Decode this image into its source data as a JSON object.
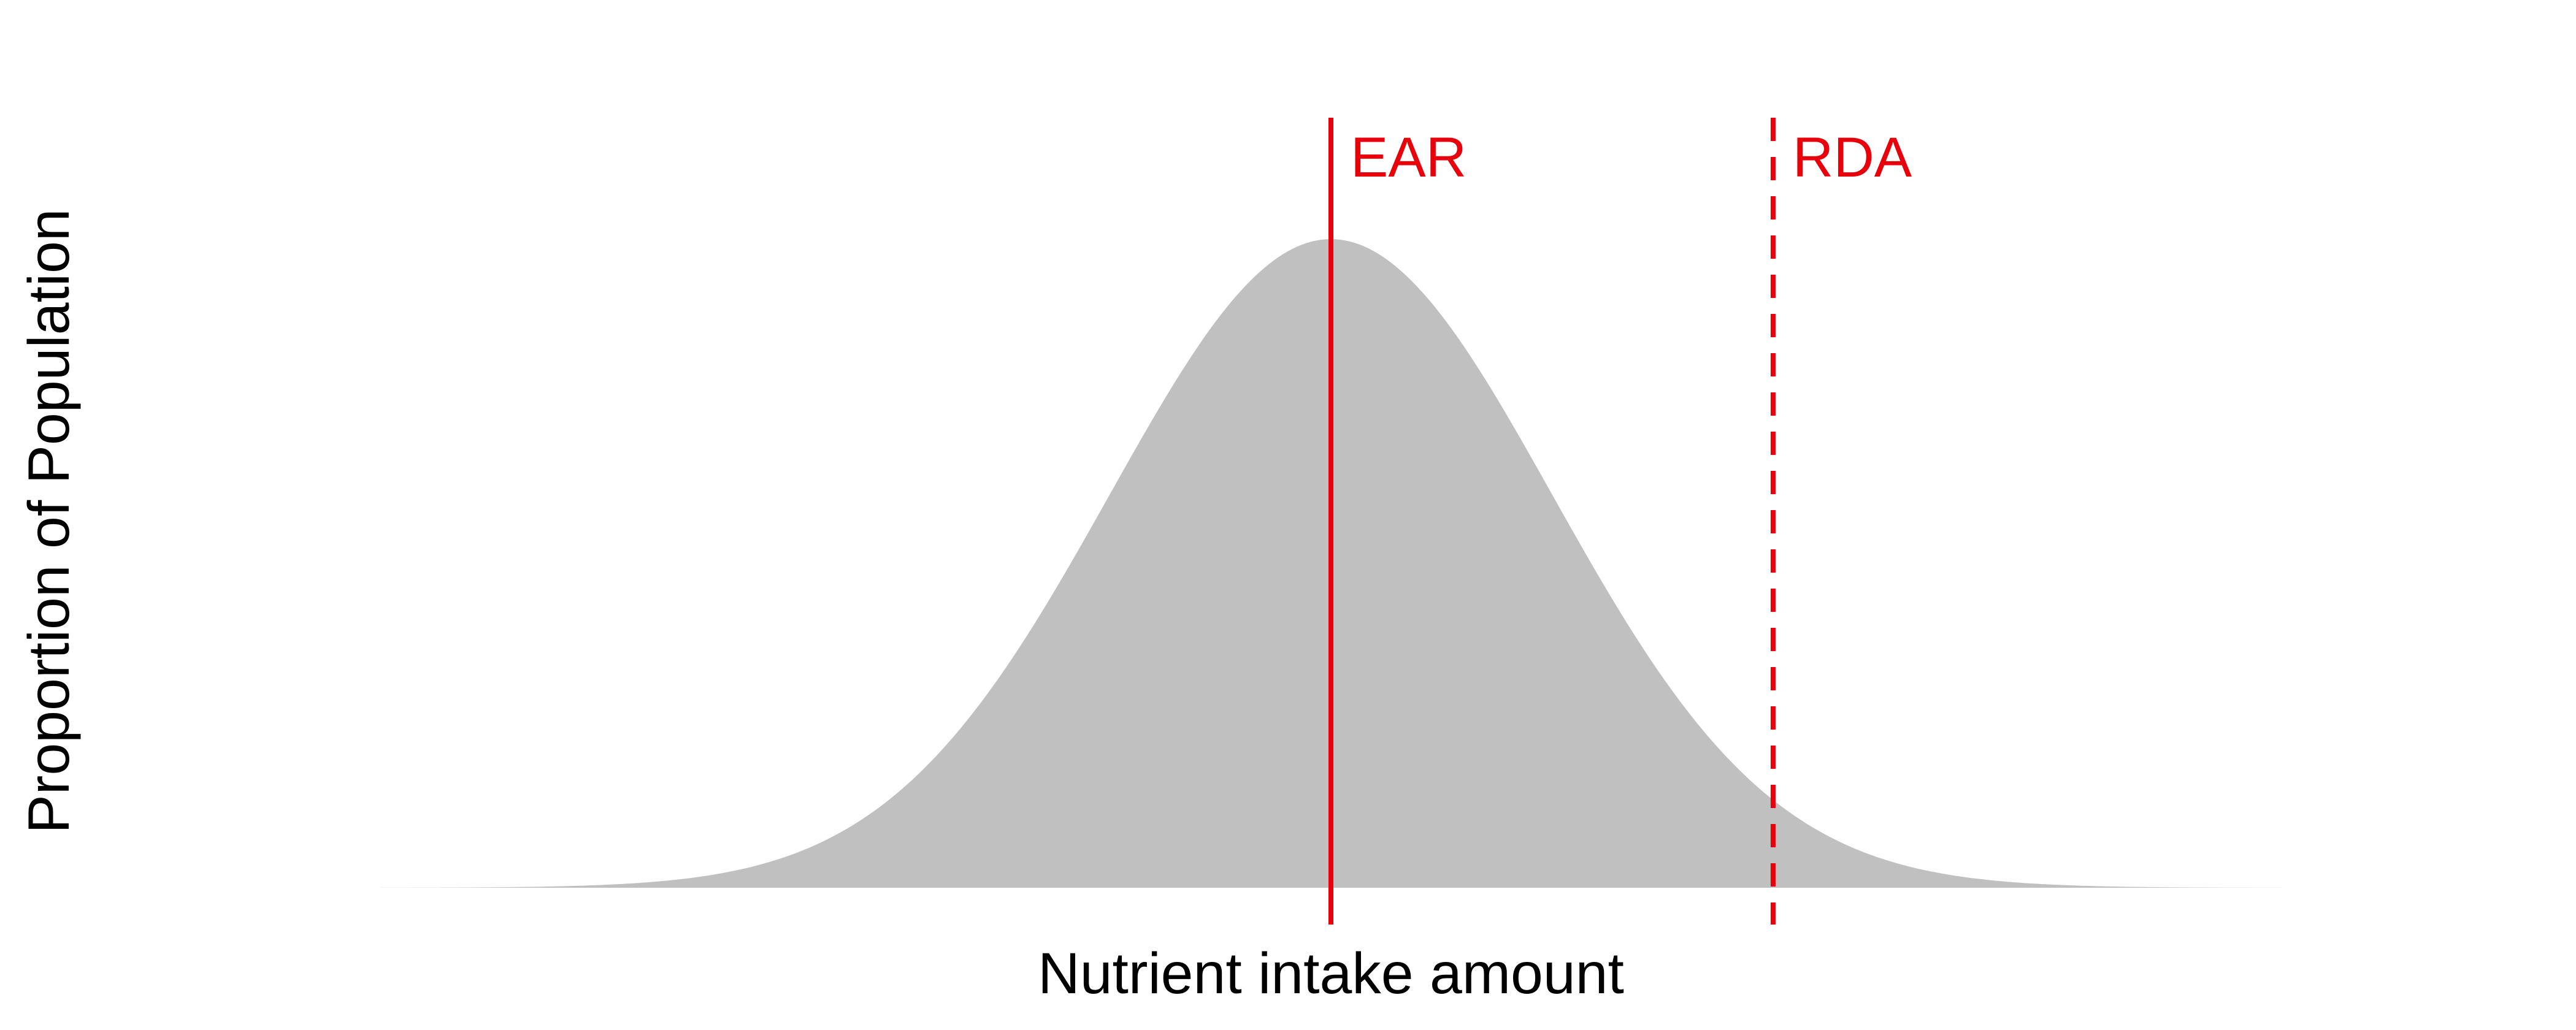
{
  "chart_data": {
    "type": "area",
    "title": "",
    "xlabel": "Nutrient intake amount",
    "ylabel": "Proportion of Population",
    "xlim": [
      -4.3,
      4.3
    ],
    "ylim": [
      0,
      1.0
    ],
    "grid": false,
    "legend": "none",
    "distribution": {
      "name": "",
      "kind": "normal",
      "mean": 0,
      "sd": 1,
      "fill_color": "#c0c0c0"
    },
    "reference_lines": [
      {
        "label": "EAR",
        "x": 0,
        "style": "solid",
        "color": "#e8000b"
      },
      {
        "label": "RDA",
        "x": 2,
        "style": "dashed",
        "color": "#e8000b"
      }
    ]
  }
}
